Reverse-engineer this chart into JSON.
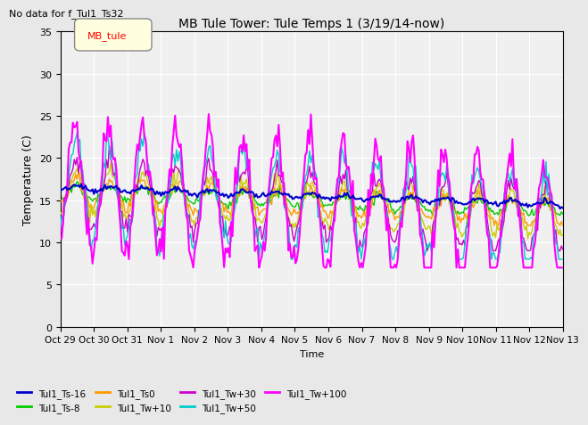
{
  "title": "MB Tule Tower: Tule Temps 1 (3/19/14-now)",
  "subtitle": "No data for f_Tul1_Ts32",
  "ylabel": "Temperature (C)",
  "xlabel": "Time",
  "ylim": [
    0,
    35
  ],
  "yticks": [
    0,
    5,
    10,
    15,
    20,
    25,
    30,
    35
  ],
  "legend_box_label": "MB_tule",
  "series": {
    "Tul1_Ts-16": {
      "color": "#0000cc",
      "lw": 1.5
    },
    "Tul1_Ts-8": {
      "color": "#00cc00",
      "lw": 1.0
    },
    "Tul1_Ts0": {
      "color": "#ff9900",
      "lw": 1.0
    },
    "Tul1_Tw+10": {
      "color": "#cccc00",
      "lw": 1.0
    },
    "Tul1_Tw+30": {
      "color": "#cc00cc",
      "lw": 1.0
    },
    "Tul1_Tw+50": {
      "color": "#00cccc",
      "lw": 1.0
    },
    "Tul1_Tw+100": {
      "color": "#ff00ff",
      "lw": 1.5
    }
  },
  "x_tick_labels": [
    "Oct 29",
    "Oct 30",
    "Oct 31",
    "Nov 1",
    "Nov 2",
    "Nov 3",
    "Nov 4",
    "Nov 5",
    "Nov 6",
    "Nov 7",
    "Nov 8",
    "Nov 9",
    "Nov 10",
    "Nov 11",
    "Nov 12",
    "Nov 13"
  ],
  "n_days": 15,
  "background_color": "#e8e8e8",
  "plot_bg_color": "#f0f0f0"
}
